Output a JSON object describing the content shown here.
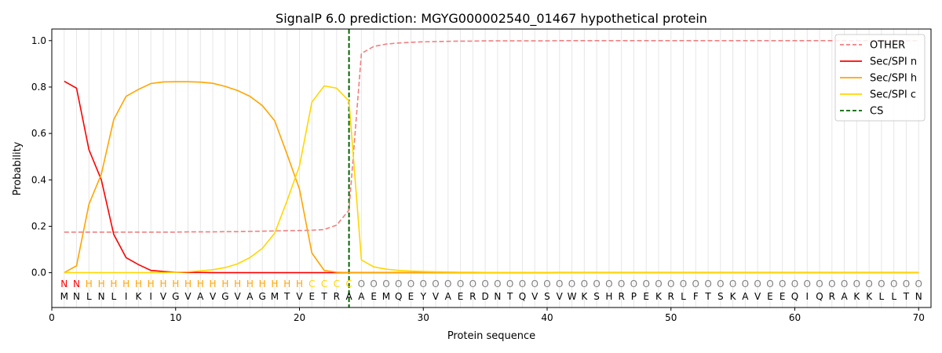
{
  "chart_data": {
    "type": "line",
    "title": "SignalP 6.0 prediction: MGYG000002540_01467 hypothetical protein",
    "xlabel": "Protein sequence",
    "ylabel": "Probability",
    "xlim": [
      0,
      71
    ],
    "ylim": [
      -0.15,
      1.05
    ],
    "x_ticks": [
      0,
      10,
      20,
      30,
      40,
      50,
      60,
      70
    ],
    "y_ticks": [
      0.0,
      0.2,
      0.4,
      0.6,
      0.8,
      1.0
    ],
    "x_tick_labels": [
      "0",
      "10",
      "20",
      "30",
      "40",
      "50",
      "60",
      "70"
    ],
    "y_tick_labels": [
      "0.0",
      "0.2",
      "0.4",
      "0.6",
      "0.8",
      "1.0"
    ],
    "grid": "vertical lines at each residue",
    "legend_position": "top-right",
    "sequence": "MNLNLIKIVGVAVGVAGMTVETRAAEMQEYVAERDNTQVSVWKSHRPEKRLFTSKAVEEQIQRAKKLLTN",
    "labels": "NNHHHHHHHHHHHHHHHHHHCCCCOOOOOOOOOOOOOOOOOOOOOOOOOOOOOOOOOOOOOOOOOOOOOO",
    "label_colors": {
      "N": "#ff0000",
      "H": "#ffa500",
      "C": "#ffd700",
      "O": "#808080"
    },
    "cleavage_site": 24,
    "series": [
      {
        "name": "OTHER",
        "color": "#f08080",
        "style": "dashed",
        "values": [
          0.175,
          0.175,
          0.175,
          0.175,
          0.175,
          0.175,
          0.175,
          0.175,
          0.175,
          0.175,
          0.176,
          0.176,
          0.176,
          0.177,
          0.177,
          0.178,
          0.179,
          0.18,
          0.181,
          0.182,
          0.183,
          0.186,
          0.205,
          0.27,
          0.945,
          0.975,
          0.985,
          0.99,
          0.993,
          0.995,
          0.996,
          0.997,
          0.998,
          0.998,
          0.999,
          0.999,
          0.999,
          0.999,
          0.999,
          0.999,
          1.0,
          1.0,
          1.0,
          1.0,
          1.0,
          1.0,
          1.0,
          1.0,
          1.0,
          1.0,
          1.0,
          1.0,
          1.0,
          1.0,
          1.0,
          1.0,
          1.0,
          1.0,
          1.0,
          1.0,
          1.0,
          1.0,
          1.0,
          1.0,
          1.0,
          1.0,
          1.0,
          1.0,
          1.0,
          1.0
        ]
      },
      {
        "name": "Sec/SPI n",
        "color": "#ff0000",
        "style": "solid",
        "values": [
          0.825,
          0.795,
          0.53,
          0.4,
          0.165,
          0.065,
          0.035,
          0.01,
          0.005,
          0.002,
          0.001,
          0.001,
          0.0,
          0.0,
          0.0,
          0.0,
          0.0,
          0.0,
          0.0,
          0.0,
          0.0,
          0.0,
          0.0,
          0.0,
          0.0,
          0.0,
          0.0,
          0.0,
          0.0,
          0.0,
          0.0,
          0.0,
          0.0,
          0.0,
          0.0,
          0.0,
          0.0,
          0.0,
          0.0,
          0.0,
          0.0,
          0.0,
          0.0,
          0.0,
          0.0,
          0.0,
          0.0,
          0.0,
          0.0,
          0.0,
          0.0,
          0.0,
          0.0,
          0.0,
          0.0,
          0.0,
          0.0,
          0.0,
          0.0,
          0.0,
          0.0,
          0.0,
          0.0,
          0.0,
          0.0,
          0.0,
          0.0,
          0.0,
          0.0,
          0.0
        ]
      },
      {
        "name": "Sec/SPI h",
        "color": "#ffa500",
        "style": "solid",
        "values": [
          0.0,
          0.03,
          0.295,
          0.425,
          0.66,
          0.76,
          0.79,
          0.815,
          0.822,
          0.823,
          0.823,
          0.821,
          0.816,
          0.803,
          0.785,
          0.76,
          0.72,
          0.655,
          0.51,
          0.36,
          0.085,
          0.01,
          0.002,
          0.0,
          0.0,
          0.0,
          0.0,
          0.0,
          0.0,
          0.0,
          0.0,
          0.0,
          0.0,
          0.0,
          0.0,
          0.0,
          0.0,
          0.0,
          0.0,
          0.0,
          0.0,
          0.0,
          0.0,
          0.0,
          0.0,
          0.0,
          0.0,
          0.0,
          0.0,
          0.0,
          0.0,
          0.0,
          0.0,
          0.0,
          0.0,
          0.0,
          0.0,
          0.0,
          0.0,
          0.0,
          0.0,
          0.0,
          0.0,
          0.0,
          0.0,
          0.0,
          0.0,
          0.0,
          0.0,
          0.0
        ]
      },
      {
        "name": "Sec/SPI c",
        "color": "#ffd700",
        "style": "solid",
        "values": [
          0.0,
          0.0,
          0.0,
          0.0,
          0.0,
          0.0,
          0.0,
          0.0,
          0.0,
          0.002,
          0.004,
          0.008,
          0.013,
          0.022,
          0.038,
          0.065,
          0.105,
          0.17,
          0.31,
          0.46,
          0.735,
          0.805,
          0.795,
          0.74,
          0.055,
          0.025,
          0.015,
          0.01,
          0.007,
          0.005,
          0.004,
          0.003,
          0.002,
          0.002,
          0.001,
          0.001,
          0.001,
          0.001,
          0.001,
          0.001,
          0.0,
          0.0,
          0.0,
          0.0,
          0.0,
          0.0,
          0.0,
          0.0,
          0.0,
          0.0,
          0.0,
          0.0,
          0.0,
          0.0,
          0.0,
          0.0,
          0.0,
          0.0,
          0.0,
          0.0,
          0.0,
          0.0,
          0.0,
          0.0,
          0.0,
          0.0,
          0.0,
          0.0,
          0.0,
          0.0
        ]
      }
    ],
    "legend": [
      {
        "label": "OTHER",
        "color": "#f08080",
        "style": "dashed"
      },
      {
        "label": "Sec/SPI n",
        "color": "#ff0000",
        "style": "solid"
      },
      {
        "label": "Sec/SPI h",
        "color": "#ffa500",
        "style": "solid"
      },
      {
        "label": "Sec/SPI c",
        "color": "#ffd700",
        "style": "solid"
      },
      {
        "label": "CS",
        "color": "#006400",
        "style": "dashed"
      }
    ]
  }
}
